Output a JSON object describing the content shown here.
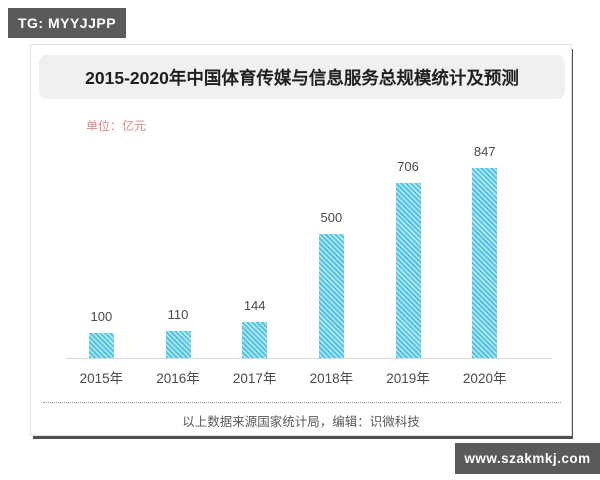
{
  "badges": {
    "telegram": "TG: MYYJJPP",
    "website": "www.szakmkj.com"
  },
  "card": {
    "title": "2015-2020年中国体育传媒与信息服务总规模统计及预测",
    "unit_label": "单位：亿元",
    "source_note": "以上数据来源国家统计局，编辑：识微科技"
  },
  "chart_data": {
    "type": "bar",
    "title": "2015-2020年中国体育传媒与信息服务总规模统计及预测",
    "unit": "亿元",
    "categories": [
      "2015年",
      "2016年",
      "2017年",
      "2018年",
      "2019年",
      "2020年"
    ],
    "values": [
      100,
      110,
      144,
      500,
      706,
      847
    ],
    "xlabel": "",
    "ylabel": "亿元",
    "ylim": [
      0,
      870
    ],
    "grid": false,
    "legend": false,
    "data_labels": true,
    "bar_style": "diagonal-hatch",
    "bar_color": "#54c4de",
    "hatch_color": "#b5e8f3",
    "label_color": "#4a4a4a",
    "unit_label_color": "#d98b8b",
    "badge_color": "#5a5a5a"
  }
}
